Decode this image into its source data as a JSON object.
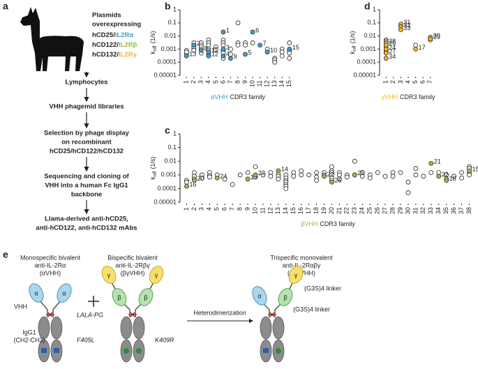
{
  "panel_a": {
    "label": "a",
    "plasmid_lines": [
      "Plasmids",
      "overexpressing"
    ],
    "receptors": [
      [
        "hCD25/",
        "IL2Rα"
      ],
      [
        "hCD122/",
        "IL2Rβ"
      ],
      [
        "hCD132/",
        "IL2Rγ"
      ]
    ],
    "receptor_colors": [
      "#3d9ec8",
      "#9bbb3b",
      "#f5b32a"
    ],
    "steps": [
      [
        "Lymphocytes"
      ],
      [
        "VHH phagemid libraries"
      ],
      [
        "Selection by phage display",
        "on recombinant",
        "hCD25/hCD122/hCD132"
      ],
      [
        "Sequencing and cloning of",
        "VHH into a human Fc IgG1",
        "backbone"
      ],
      [
        "Llama-derived anti-hCD25,",
        "anti-hCD122, anti-hCD132 mAbs"
      ]
    ]
  },
  "chart_data": [
    {
      "type": "scatter",
      "label": "b",
      "log_y": true,
      "ylabel": [
        "k",
        "off",
        "(1/s)"
      ],
      "xlabel": [
        "αVHH",
        "CDR3 family"
      ],
      "xlabel_color": "#3d9ec8",
      "xlim": [
        0.5,
        15.5
      ],
      "xticks": [
        1,
        2,
        3,
        4,
        5,
        6,
        7,
        8,
        9,
        10,
        11,
        12,
        13,
        14,
        15
      ],
      "ylim": [
        1e-05,
        1
      ],
      "yticks": [
        {
          "value": 1e-05,
          "label": "0.00001"
        },
        0.0001,
        0.001,
        0.01,
        0.1,
        1
      ],
      "series": [
        {
          "color": "#ffffff",
          "x": [
            1,
            1,
            1,
            2,
            2,
            2,
            2,
            2,
            3,
            3,
            3,
            3,
            3,
            4,
            4,
            4,
            4,
            4,
            4,
            5,
            5,
            6,
            6,
            6,
            6,
            6,
            6,
            7,
            7,
            8,
            8,
            8,
            9,
            9,
            10,
            12,
            13,
            13,
            13,
            14,
            14,
            14,
            15,
            15,
            15,
            15
          ],
          "values": [
            0.0005,
            0.0008,
            0.0006,
            0.001,
            0.002,
            0.003,
            0.0015,
            0.0008,
            0.003,
            0.002,
            0.0015,
            0.001,
            0.0005,
            0.005,
            0.003,
            0.002,
            0.001,
            0.0008,
            0.0004,
            0.0015,
            0.0009,
            0.005,
            0.003,
            0.002,
            0.0008,
            0.0005,
            0.0002,
            0.001,
            0.0004,
            0.1,
            0.003,
            0.002,
            0.003,
            0.002,
            0.003,
            0.001,
            0.0002,
            0.00015,
            0.0001,
            0.001,
            0.0006,
            0.0003,
            0.003,
            0.0008,
            0.0005,
            0.0002
          ]
        },
        {
          "color": "#3d9ec8",
          "x": [
            1,
            2,
            3,
            4,
            4,
            6,
            6,
            6,
            7,
            9,
            10,
            11,
            12,
            15
          ],
          "values": [
            0.0003,
            0.002,
            0.0008,
            0.0006,
            0.0003,
            0.02,
            0.001,
            0.0003,
            0.0002,
            0.0004,
            0.02,
            0.002,
            0.0006,
            0.001
          ],
          "labels": [
            "13",
            "2",
            "8",
            "11",
            "12",
            "1",
            "3",
            "4",
            "9",
            "5",
            "6",
            "7",
            "10",
            "15"
          ]
        }
      ]
    },
    {
      "type": "scatter",
      "label": "d",
      "log_y": true,
      "ylabel": [
        "k",
        "off",
        "(1/s)"
      ],
      "xlabel": [
        "γVHH",
        "CDR3 family"
      ],
      "xlabel_color": "#f5b32a",
      "xlim": [
        0.5,
        7.5
      ],
      "xticks": [
        1,
        2,
        3,
        4,
        5,
        6,
        7
      ],
      "ylim": [
        1e-05,
        1
      ],
      "yticks": [
        {
          "value": 1e-05,
          "label": "0.00001"
        },
        0.0001,
        0.001,
        0.01,
        0.1,
        1
      ],
      "series": [
        {
          "color": "#ffffff",
          "x": [
            1,
            1,
            1,
            1,
            1,
            1,
            1,
            1,
            3,
            5,
            7,
            7
          ],
          "values": [
            0.005,
            0.004,
            0.003,
            0.002,
            0.0015,
            0.001,
            0.0008,
            0.0006,
            0.06,
            0.002,
            0.005,
            0.007
          ]
        },
        {
          "color": "#f5b32a",
          "x": [
            1,
            1,
            1,
            1,
            1,
            3,
            3,
            3,
            5,
            7,
            7
          ],
          "values": [
            0.003,
            0.002,
            0.001,
            0.0005,
            0.0002,
            0.08,
            0.05,
            0.03,
            0.001,
            0.008,
            0.006
          ],
          "labels": [
            "28",
            "26",
            "24",
            "27",
            "34",
            "31",
            "32",
            "33",
            "17",
            "30",
            "29"
          ]
        }
      ]
    },
    {
      "type": "scatter",
      "label": "c",
      "log_y": true,
      "ylabel": [
        "k",
        "off",
        "(1/s)"
      ],
      "xlabel": [
        "βVHH",
        "CDR3 family"
      ],
      "xlabel_color": "#9bbb3b",
      "xlim": [
        0.5,
        38.5
      ],
      "xticks": [
        1,
        2,
        3,
        4,
        5,
        6,
        7,
        8,
        9,
        10,
        11,
        12,
        13,
        14,
        15,
        16,
        17,
        18,
        19,
        20,
        21,
        22,
        23,
        24,
        25,
        26,
        27,
        28,
        29,
        30,
        31,
        32,
        33,
        34,
        35,
        36,
        37,
        38
      ],
      "ylim": [
        1e-05,
        1
      ],
      "yticks": [
        {
          "value": 1e-05,
          "label": "0.00001"
        },
        0.0001,
        0.001,
        0.01,
        0.1,
        1
      ],
      "series": [
        {
          "color": "#ffffff",
          "x": [
            1,
            1,
            2,
            2,
            2,
            3,
            3,
            4,
            4,
            4,
            5,
            6,
            7,
            8,
            9,
            10,
            10,
            11,
            12,
            12,
            13,
            13,
            13,
            14,
            14,
            14,
            14,
            14,
            14,
            14,
            15,
            15,
            16,
            16,
            17,
            18,
            18,
            18,
            19,
            19,
            20,
            20,
            20,
            20,
            20,
            20,
            21,
            21,
            21,
            22,
            22,
            23,
            23,
            24,
            24,
            25,
            25,
            26,
            27,
            28,
            28,
            29,
            30,
            30,
            31,
            31,
            32,
            33,
            34,
            35,
            35,
            36,
            37,
            37,
            38,
            38,
            38,
            38
          ],
          "values": [
            0.0004,
            0.0003,
            0.0015,
            0.0008,
            0.0005,
            0.001,
            0.0006,
            0.0015,
            0.0009,
            0.0007,
            0.001,
            0.0005,
            0.0002,
            0.001,
            0.0015,
            0.004,
            0.0007,
            0.001,
            0.0015,
            0.0008,
            0.0012,
            0.0008,
            0.0005,
            0.001,
            0.0006,
            0.0004,
            0.0003,
            0.0002,
            0.00015,
            0.0001,
            0.0015,
            0.0008,
            0.002,
            0.001,
            0.001,
            0.0015,
            0.0007,
            0.0004,
            0.0015,
            0.001,
            0.004,
            0.002,
            0.0015,
            0.001,
            0.0006,
            0.0004,
            0.0015,
            0.001,
            0.0005,
            0.001,
            0.0007,
            0.01,
            0.001,
            0.0015,
            0.0008,
            0.001,
            0.0006,
            0.0015,
            0.0008,
            0.0015,
            0.0008,
            0.0015,
            0.0003,
            5e-05,
            0.003,
            0.001,
            0.0008,
            0.0015,
            0.0015,
            0.001,
            0.0005,
            0.0008,
            0.0015,
            0.0006,
            0.004,
            0.003,
            0.0015,
            0.001
          ]
        },
        {
          "color": "#9bbb3b",
          "x": [
            1,
            2,
            5,
            9,
            10,
            13,
            19,
            20,
            23,
            33,
            34,
            35,
            38
          ],
          "values": [
            0.00015,
            0.0004,
            0.0006,
            0.0005,
            0.001,
            0.002,
            0.0008,
            0.0003,
            0.001,
            0.007,
            0.0008,
            0.0004,
            0.002
          ],
          "labels": [
            "16",
            "20",
            "24",
            "19",
            "23",
            "14",
            "22",
            "26",
            "25",
            "21",
            "22",
            "18",
            "15"
          ]
        }
      ]
    }
  ],
  "panel_e": {
    "label": "e",
    "mono": [
      "Monospecific bivalent",
      "anti-IL-2Rα",
      "(αVHH)"
    ],
    "bi": [
      "Bispecific bivalent",
      "anti-IL-2Rβγ",
      "(βγVHH)"
    ],
    "tri": [
      "Trispecific monovalent",
      "anti-IL-2Rαβγ",
      "(αβγVHH)"
    ],
    "vhh": "VHH",
    "igg": [
      "IgG1",
      "(CH2-CH3)"
    ],
    "mutations": [
      "LALA-PG",
      "F405L",
      "K409R"
    ],
    "arrow": "Heterodimerization",
    "linker": "(G3S)4 linker",
    "domains": [
      "α",
      "β",
      "γ"
    ]
  }
}
